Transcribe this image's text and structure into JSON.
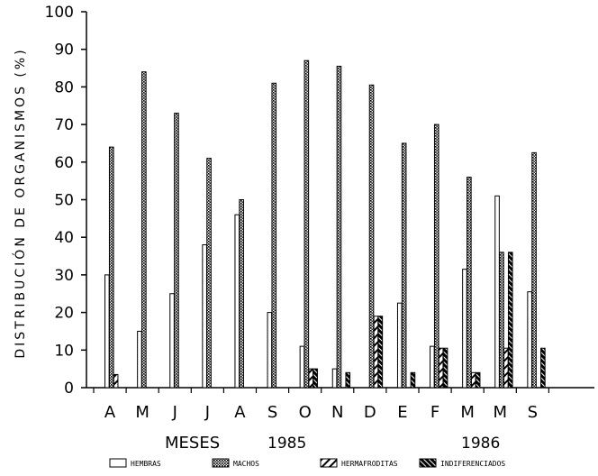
{
  "chart_data": {
    "type": "bar",
    "title": "",
    "ylabel": "DISTRIBUCIÓN DE ORGANISMOS (%)",
    "xlabel": "MESES",
    "year_labels": [
      "1985",
      "1986"
    ],
    "ylim": [
      0,
      100
    ],
    "yticks": [
      0,
      10,
      20,
      30,
      40,
      50,
      60,
      70,
      80,
      90,
      100
    ],
    "grid": false,
    "legend_position": "bottom",
    "categories": [
      "A",
      "M",
      "J",
      "J",
      "A",
      "S",
      "O",
      "N",
      "D",
      "E",
      "F",
      "M",
      "M",
      "S"
    ],
    "series": [
      {
        "name": "HEMBRAS",
        "pattern": "white",
        "values": [
          30,
          15,
          25,
          38,
          46,
          20,
          11,
          5,
          0,
          22.5,
          11,
          31.5,
          51,
          25.5
        ]
      },
      {
        "name": "MACHOS",
        "pattern": "dotted",
        "values": [
          64,
          84,
          73,
          61,
          50,
          81,
          87,
          85.5,
          80.5,
          65,
          70,
          56,
          36,
          62.5
        ]
      },
      {
        "name": "HERMAFRODITAS",
        "pattern": "hatch",
        "values": [
          3.5,
          0,
          0,
          0,
          0,
          0,
          5,
          0,
          19,
          0,
          10.5,
          4,
          10.5,
          0
        ]
      },
      {
        "name": "INDIFERENCIADOS",
        "pattern": "dark",
        "values": [
          0,
          0,
          0,
          0,
          0,
          0,
          5,
          4,
          19,
          4,
          10.5,
          4,
          36,
          10.5
        ]
      }
    ]
  }
}
